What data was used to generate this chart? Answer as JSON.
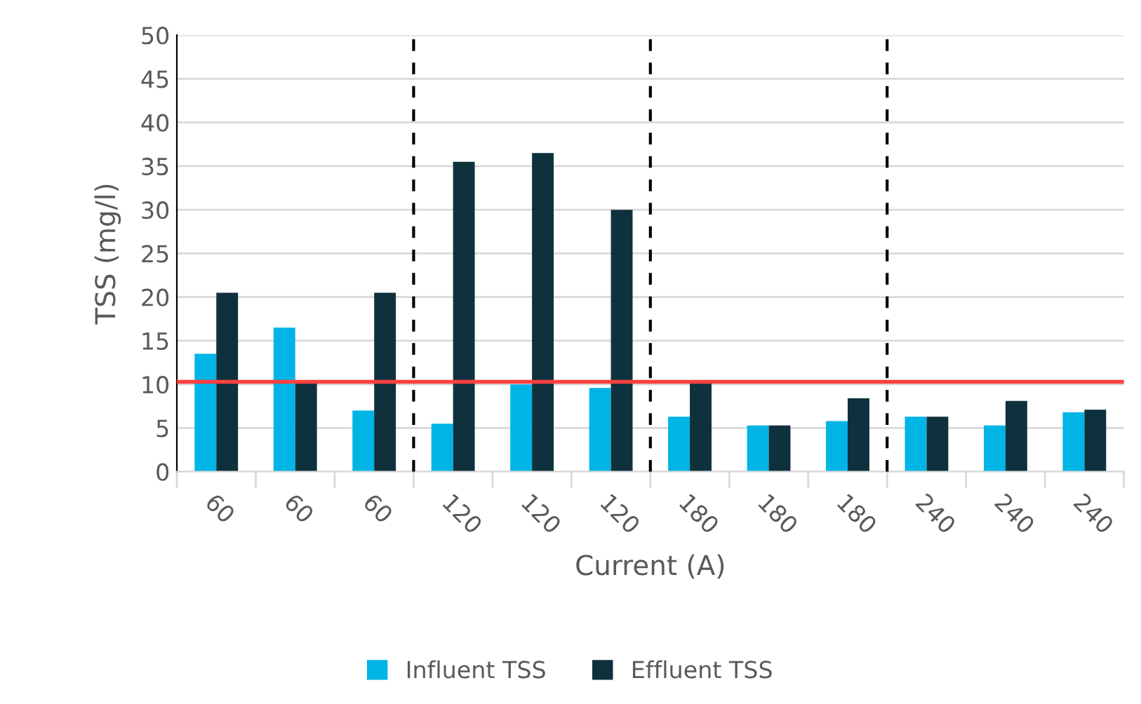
{
  "chart_data": {
    "type": "bar",
    "xlabel": "Current (A)",
    "ylabel": "TSS (mg/l)",
    "categories": [
      "60",
      "60",
      "60",
      "120",
      "120",
      "120",
      "180",
      "180",
      "180",
      "240",
      "240",
      "240"
    ],
    "series": [
      {
        "name": "Influent TSS",
        "color": "#00b4e6",
        "values": [
          13.5,
          16.5,
          7,
          5.5,
          10,
          9.6,
          6.3,
          5.3,
          5.8,
          6.3,
          5.3,
          6.8
        ]
      },
      {
        "name": "Effluent TSS",
        "color": "#0e313d",
        "values": [
          20.5,
          10.2,
          20.5,
          35.5,
          36.5,
          30,
          10.3,
          5.3,
          8.4,
          6.3,
          8.1,
          7.1
        ]
      }
    ],
    "ylim": [
      0,
      50
    ],
    "yticks": [
      0,
      5,
      10,
      15,
      20,
      25,
      30,
      35,
      40,
      45,
      50
    ],
    "ref_lines": [
      {
        "axis": "y",
        "value": 10.3,
        "color": "#ff4040",
        "line_style": "solid"
      }
    ],
    "grid": "y",
    "legend": "bottom"
  }
}
